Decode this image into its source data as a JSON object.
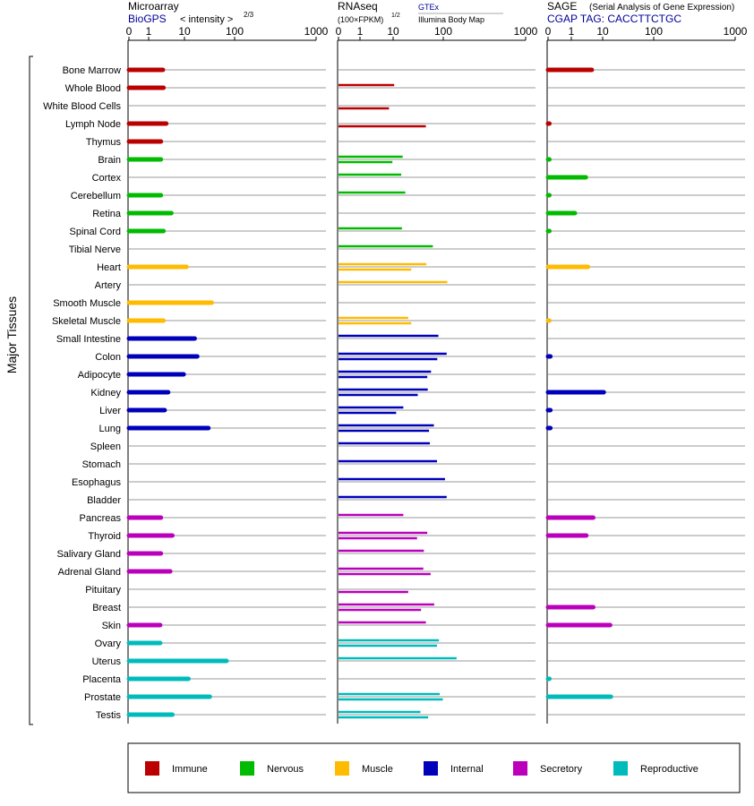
{
  "headers": {
    "microarray": {
      "title": "Microarray",
      "source": "BioGPS",
      "unit_prefix": "< intensity >",
      "unit_exp": "2/3"
    },
    "rnaseq": {
      "title": "RNAseq",
      "unit_prefix": "(100×FPKM)",
      "unit_exp": "1/2",
      "source_top": "GTEx",
      "source_bottom": "Illumina Body Map"
    },
    "sage": {
      "title": "SAGE",
      "subtitle": "(Serial Analysis of Gene Expression)",
      "tag": "CGAP TAG: CACCTTCTGC"
    }
  },
  "ylabel": "Major Tissues",
  "colors": {
    "Immune": "#bb0000",
    "Nervous": "#00bb00",
    "Muscle": "#ffbb00",
    "Internal": "#0000bb",
    "Secretory": "#bb00bb",
    "Reproductive": "#00bbbb"
  },
  "legend": [
    {
      "label": "Immune",
      "color": "#bb0000"
    },
    {
      "label": "Nervous",
      "color": "#00bb00"
    },
    {
      "label": "Muscle",
      "color": "#ffbb00"
    },
    {
      "label": "Internal",
      "color": "#0000bb"
    },
    {
      "label": "Secretory",
      "color": "#bb00bb"
    },
    {
      "label": "Reproductive",
      "color": "#00bbbb"
    }
  ],
  "chart_data": {
    "type": "bar",
    "orientation": "horizontal",
    "x_scale": "power-transformed",
    "x_ticks": [
      "0",
      "1",
      "10",
      "100",
      "1000"
    ],
    "xlim": [
      0,
      1000
    ],
    "categories": [
      "Bone Marrow",
      "Whole Blood",
      "White Blood Cells",
      "Lymph Node",
      "Thymus",
      "Brain",
      "Cortex",
      "Cerebellum",
      "Retina",
      "Spinal Cord",
      "Tibial Nerve",
      "Heart",
      "Artery",
      "Smooth Muscle",
      "Skeletal Muscle",
      "Small Intestine",
      "Colon",
      "Adipocyte",
      "Kidney",
      "Liver",
      "Lung",
      "Spleen",
      "Stomach",
      "Esophagus",
      "Bladder",
      "Pancreas",
      "Thyroid",
      "Salivary Gland",
      "Adrenal Gland",
      "Pituitary",
      "Breast",
      "Skin",
      "Ovary",
      "Uterus",
      "Placenta",
      "Prostate",
      "Testis"
    ],
    "groups": [
      "Immune",
      "Immune",
      "Immune",
      "Immune",
      "Immune",
      "Nervous",
      "Nervous",
      "Nervous",
      "Nervous",
      "Nervous",
      "Nervous",
      "Muscle",
      "Muscle",
      "Muscle",
      "Muscle",
      "Internal",
      "Internal",
      "Internal",
      "Internal",
      "Internal",
      "Internal",
      "Internal",
      "Internal",
      "Internal",
      "Internal",
      "Secretory",
      "Secretory",
      "Secretory",
      "Secretory",
      "Secretory",
      "Secretory",
      "Secretory",
      "Reproductive",
      "Reproductive",
      "Reproductive",
      "Reproductive",
      "Reproductive"
    ],
    "series": [
      {
        "name": "Microarray",
        "values": [
          2.5,
          2.6,
          null,
          3.1,
          2.2,
          2.2,
          null,
          2.2,
          4.3,
          2.6,
          null,
          11,
          null,
          35,
          2.6,
          16,
          18,
          9.5,
          3.5,
          2.8,
          30,
          null,
          null,
          null,
          null,
          2.2,
          4.6,
          2.2,
          4.0,
          null,
          null,
          2.1,
          2.1,
          69,
          12,
          32,
          4.6
        ]
      },
      {
        "name": "GTEx",
        "values": [
          null,
          10.5,
          null,
          null,
          null,
          15.5,
          null,
          null,
          null,
          null,
          null,
          null,
          null,
          null,
          null,
          null,
          null,
          null,
          null,
          null,
          null,
          null,
          null,
          null,
          null,
          null,
          null,
          null,
          null,
          null,
          null,
          null,
          null,
          null,
          null,
          null,
          null
        ]
      },
      {
        "name": "Illumina Body Map",
        "values": [
          null,
          null,
          null,
          null,
          null,
          null,
          null,
          null,
          null,
          null,
          null,
          null,
          null,
          null,
          null,
          null,
          null,
          null,
          null,
          null,
          null,
          null,
          null,
          null,
          null,
          null,
          null,
          null,
          null,
          null,
          null,
          null,
          null,
          null,
          null,
          null,
          null
        ]
      },
      {
        "name": "RNAseq upper",
        "values": [
          null,
          10.5,
          null,
          null,
          null,
          15.5,
          14.5,
          17.5,
          null,
          15,
          62,
          46,
          112,
          null,
          20,
          80,
          110,
          57,
          49,
          16,
          65,
          54,
          75,
          105,
          110,
          16,
          48,
          41,
          40,
          null,
          66,
          45,
          82,
          145,
          null,
          85,
          35
        ]
      },
      {
        "name": "RNAseq lower",
        "values": [
          null,
          null,
          7.5,
          45,
          null,
          9.5,
          null,
          null,
          null,
          null,
          null,
          23,
          null,
          null,
          23,
          null,
          76,
          48,
          31,
          11.5,
          52,
          null,
          null,
          null,
          null,
          null,
          30,
          null,
          56,
          20,
          36,
          null,
          75,
          null,
          null,
          98,
          50
        ]
      },
      {
        "name": "SAGE",
        "values": [
          4.5,
          null,
          null,
          0.05,
          null,
          0.05,
          2.9,
          0.05,
          1.3,
          0.05,
          null,
          3.4,
          null,
          null,
          0.05,
          null,
          0.1,
          null,
          10.5,
          0.1,
          0.1,
          null,
          null,
          null,
          null,
          5.0,
          3.0,
          null,
          null,
          null,
          5.0,
          14,
          null,
          null,
          0.05,
          14.5,
          null
        ]
      }
    ]
  }
}
